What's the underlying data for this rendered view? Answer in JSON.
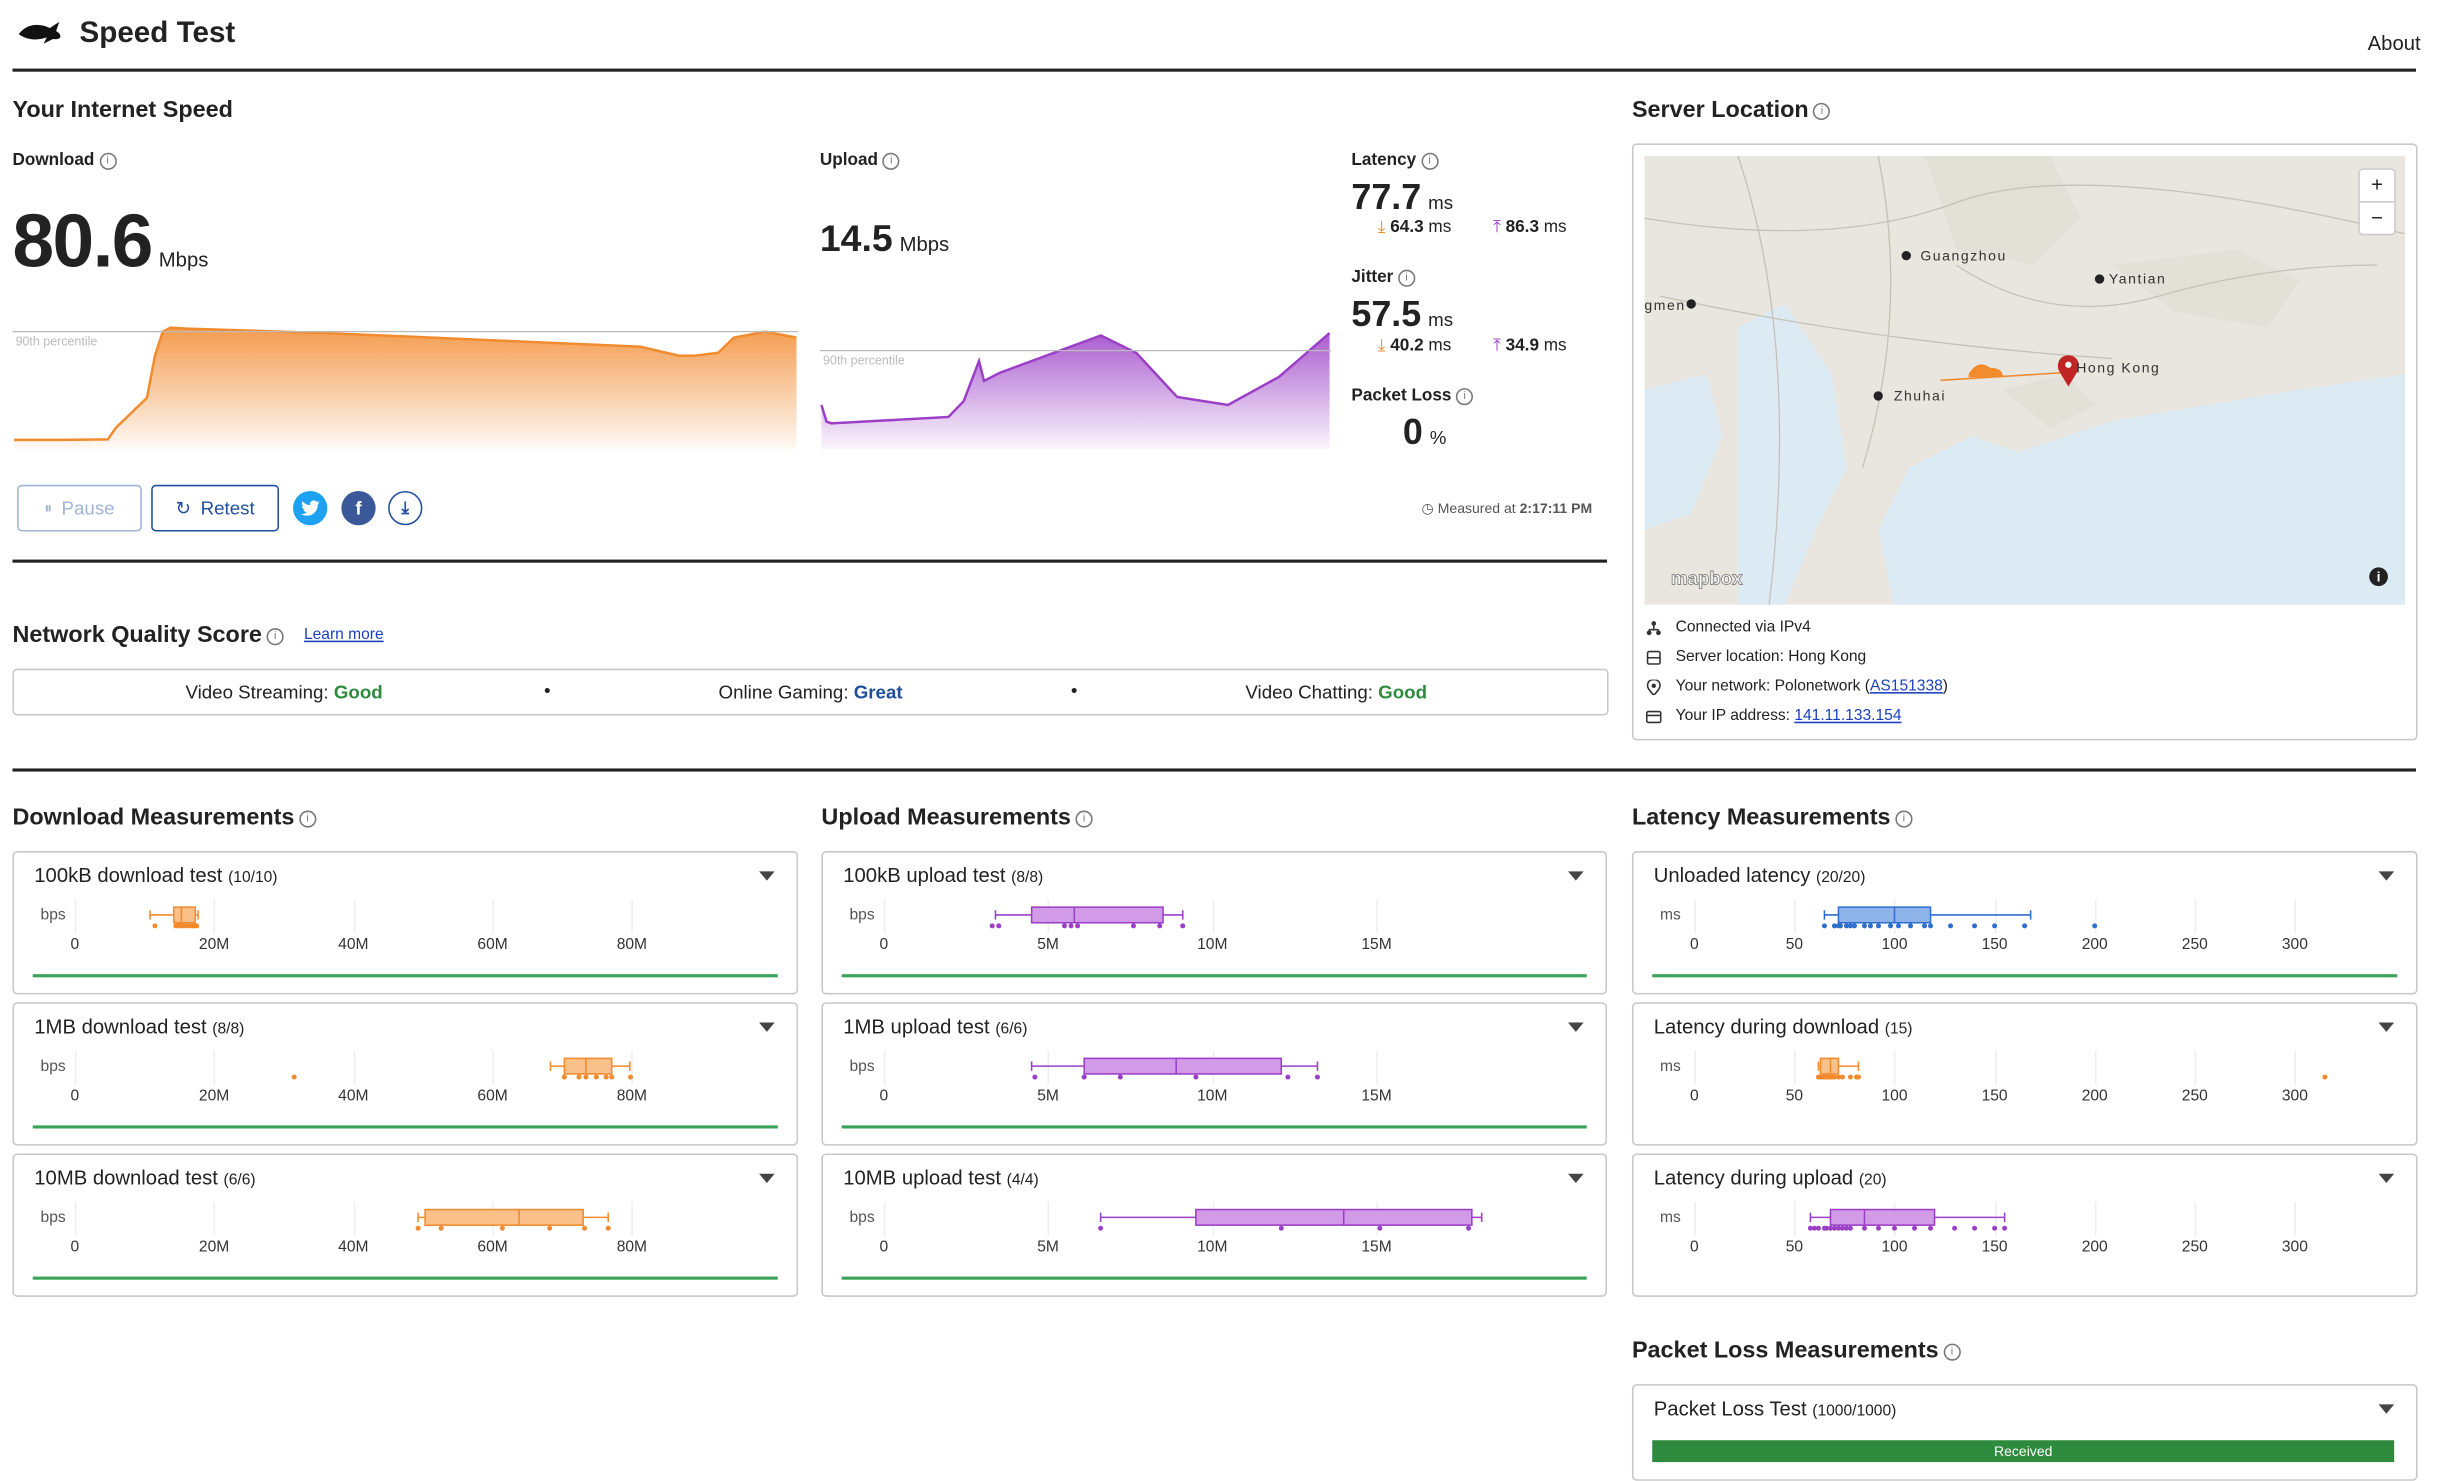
{
  "app": {
    "title": "Speed Test",
    "about": "About"
  },
  "speed": {
    "heading": "Your Internet Speed",
    "download": {
      "label": "Download",
      "value": "80.6",
      "unit": "Mbps"
    },
    "upload": {
      "label": "Upload",
      "value": "14.5",
      "unit": "Mbps"
    },
    "percentile_label": "90th percentile",
    "latency": {
      "label": "Latency",
      "value": "77.7",
      "unit": "ms",
      "down": "64.3",
      "up": "86.3",
      "sub_unit": "ms"
    },
    "jitter": {
      "label": "Jitter",
      "value": "57.5",
      "unit": "ms",
      "down": "40.2",
      "up": "34.9",
      "sub_unit": "ms"
    },
    "packet_loss": {
      "label": "Packet Loss",
      "value": "0",
      "unit": "%"
    },
    "buttons": {
      "pause": "Pause",
      "retest": "Retest"
    },
    "measured_prefix": "Measured at",
    "measured_time": "2:17:11 PM"
  },
  "quality": {
    "heading": "Network Quality Score",
    "learn_more": "Learn more",
    "items": [
      {
        "label": "Video Streaming:",
        "value": "Good",
        "color": "#2e8b3d"
      },
      {
        "label": "Online Gaming:",
        "value": "Great",
        "color": "#1f4f9c"
      },
      {
        "label": "Video Chatting:",
        "value": "Good",
        "color": "#2e8b3d"
      }
    ],
    "separator": "•"
  },
  "server": {
    "heading": "Server Location",
    "map_labels": {
      "guangzhou": "Guangzhou",
      "yantian": "Yantian",
      "zhuhai": "Zhuhai",
      "hongkong": "Hong Kong",
      "gmen": "gmen",
      "mapbox": "mapbox",
      "zoom_in": "+",
      "zoom_out": "−",
      "info": "i"
    },
    "connected": "Connected via IPv4",
    "location": "Server location: Hong Kong",
    "network_prefix": "Your network: Polonetwork (",
    "network_asn": "AS151338",
    "network_suffix": ")",
    "ip_prefix": "Your IP address: ",
    "ip": "141.11.133.154"
  },
  "download_measurements": {
    "heading": "Download Measurements",
    "unit": "bps",
    "ticks": [
      "0",
      "20M",
      "40M",
      "60M",
      "80M"
    ],
    "tests": [
      {
        "title": "100kB download test",
        "count": "(10/10)"
      },
      {
        "title": "1MB download test",
        "count": "(8/8)"
      },
      {
        "title": "10MB download test",
        "count": "(6/6)"
      }
    ]
  },
  "upload_measurements": {
    "heading": "Upload Measurements",
    "unit": "bps",
    "ticks": [
      "0",
      "5M",
      "10M",
      "15M"
    ],
    "tests": [
      {
        "title": "100kB upload test",
        "count": "(8/8)"
      },
      {
        "title": "1MB upload test",
        "count": "(6/6)"
      },
      {
        "title": "10MB upload test",
        "count": "(4/4)"
      }
    ]
  },
  "latency_measurements": {
    "heading": "Latency Measurements",
    "unit": "ms",
    "ticks": [
      "0",
      "50",
      "100",
      "150",
      "200",
      "250",
      "300"
    ],
    "tests": [
      {
        "title": "Unloaded latency",
        "count": "(20/20)"
      },
      {
        "title": "Latency during download",
        "count": "(15)"
      },
      {
        "title": "Latency during upload",
        "count": "(20)"
      }
    ]
  },
  "packet_loss_measurements": {
    "heading": "Packet Loss Measurements",
    "test_title": "Packet Loss Test",
    "test_count": "(1000/1000)",
    "received_label": "Received"
  },
  "colors": {
    "download": "#f28a2e",
    "upload": "#9b3fc7",
    "latency": "#2f6fd0",
    "good": "#2e8b3d",
    "accent": "#1f4f9c"
  },
  "chart_data": [
    {
      "type": "area",
      "title": "Download",
      "x": [
        0,
        6,
        12,
        13,
        17,
        18,
        19,
        20,
        22,
        40,
        80,
        85,
        87,
        90,
        92,
        96,
        100
      ],
      "values": [
        6,
        6,
        6.3,
        14,
        34,
        62,
        78,
        80.6,
        80,
        77,
        68,
        62,
        62,
        64,
        74,
        78,
        74
      ],
      "ylabel": "Mbps",
      "ylim": [
        0,
        85
      ],
      "percentile_90": 78
    },
    {
      "type": "area",
      "title": "Upload",
      "x": [
        0,
        1,
        2,
        25,
        28,
        31,
        32,
        35,
        55,
        62,
        70,
        80,
        90,
        100
      ],
      "values": [
        5.5,
        3.4,
        3.2,
        4,
        6,
        11,
        8.5,
        9.5,
        14.2,
        12,
        6.5,
        5.5,
        9,
        14.5
      ],
      "ylabel": "Mbps",
      "ylim": [
        0,
        16
      ],
      "percentile_90": 12.3
    },
    {
      "type": "boxplot",
      "title": "100kB download test",
      "unit": "bps",
      "whisker": [
        10.8,
        17.7
      ],
      "box": [
        14.2,
        17.3
      ],
      "median": 15.3,
      "points": [
        11.5,
        14.5,
        15.2,
        16.1,
        16.6,
        17.2,
        17.5,
        15.6,
        16.9,
        14.9
      ]
    },
    {
      "type": "boxplot",
      "title": "1MB download test",
      "unit": "bps",
      "whisker": [
        68.3,
        79.7
      ],
      "box": [
        70.3,
        77.1
      ],
      "median": 73.4,
      "points": [
        31.5,
        70.3,
        73.4,
        77.1,
        79.8,
        72.4,
        74.9,
        76.3
      ]
    },
    {
      "type": "boxplot",
      "title": "10MB download test",
      "unit": "bps",
      "whisker": [
        49.3,
        76.6
      ],
      "box": [
        50.3,
        73.0
      ],
      "median": 63.8,
      "points": [
        49.3,
        52.6,
        61.4,
        68.2,
        73.2,
        76.6
      ]
    },
    {
      "type": "boxplot",
      "title": "100kB upload test",
      "unit": "bps",
      "whisker": [
        3.4,
        9.1
      ],
      "box": [
        4.5,
        8.5
      ],
      "median": 5.8,
      "points": [
        3.3,
        3.5,
        5.5,
        5.7,
        5.9,
        7.6,
        8.4,
        9.1
      ]
    },
    {
      "type": "boxplot",
      "title": "1MB upload test",
      "unit": "bps",
      "whisker": [
        4.5,
        13.2
      ],
      "box": [
        6.1,
        12.1
      ],
      "median": 8.9,
      "points": [
        4.6,
        6.1,
        7.2,
        9.5,
        12.3,
        13.2
      ]
    },
    {
      "type": "boxplot",
      "title": "10MB upload test",
      "unit": "bps",
      "whisker": [
        6.6,
        18.2
      ],
      "box": [
        9.5,
        17.9
      ],
      "median": 14.0,
      "points": [
        6.6,
        12.1,
        15.1,
        17.8
      ]
    },
    {
      "type": "boxplot",
      "title": "Unloaded latency",
      "unit": "ms",
      "whisker": [
        65,
        168
      ],
      "box": [
        72,
        118
      ],
      "median": 100,
      "points": [
        65,
        70,
        73,
        76,
        78,
        80,
        85,
        88,
        92,
        98,
        102,
        108,
        115,
        118,
        128,
        140,
        150,
        165,
        200,
        72
      ]
    },
    {
      "type": "boxplot",
      "title": "Latency during download",
      "unit": "ms",
      "whisker": [
        62,
        82
      ],
      "box": [
        63,
        72
      ],
      "median": 68,
      "points": [
        62,
        64,
        65,
        66,
        67,
        68,
        70,
        72,
        74,
        78,
        81,
        82,
        63,
        69,
        315
      ]
    },
    {
      "type": "boxplot",
      "title": "Latency during upload",
      "unit": "ms",
      "whisker": [
        58,
        155
      ],
      "box": [
        68,
        120
      ],
      "median": 85,
      "points": [
        58,
        60,
        62,
        65,
        68,
        70,
        72,
        74,
        76,
        78,
        85,
        92,
        100,
        110,
        118,
        130,
        140,
        150,
        155,
        66
      ]
    }
  ]
}
